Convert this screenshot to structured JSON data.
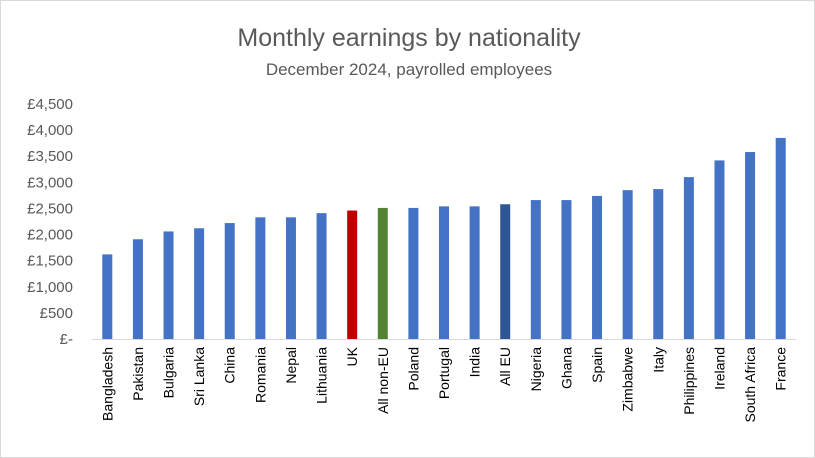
{
  "chart_data": {
    "type": "bar",
    "title": "Monthly earnings by nationality",
    "subtitle": "December 2024, payrolled employees",
    "xlabel": "",
    "ylabel": "",
    "ylim": [
      0,
      4500
    ],
    "ytick_values": [
      0,
      500,
      1000,
      1500,
      2000,
      2500,
      3000,
      3500,
      4000,
      4500
    ],
    "ytick_labels": [
      "£-",
      "£500",
      "£1,000",
      "£1,500",
      "£2,000",
      "£2,500",
      "£3,000",
      "£3,500",
      "£4,000",
      "£4,500"
    ],
    "grid": false,
    "legend": "none",
    "categories": [
      "Bangladesh",
      "Pakistan",
      "Bulgaria",
      "Sri Lanka",
      "China",
      "Romania",
      "Nepal",
      "Lithuania",
      "UK",
      "All non-EU",
      "Poland",
      "Portugal",
      "India",
      "All EU",
      "Nigeria",
      "Ghana",
      "Spain",
      "Zimbabwe",
      "Italy",
      "Philippines",
      "Ireland",
      "South Africa",
      "France"
    ],
    "values": [
      1620,
      1910,
      2060,
      2120,
      2220,
      2330,
      2330,
      2410,
      2460,
      2510,
      2510,
      2540,
      2540,
      2580,
      2660,
      2660,
      2740,
      2850,
      2870,
      3100,
      3420,
      3580,
      3850
    ],
    "bar_colors": [
      "#4472c4",
      "#4472c4",
      "#4472c4",
      "#4472c4",
      "#4472c4",
      "#4472c4",
      "#4472c4",
      "#4472c4",
      "#c00000",
      "#548235",
      "#4472c4",
      "#4472c4",
      "#4472c4",
      "#2f5597",
      "#4472c4",
      "#4472c4",
      "#4472c4",
      "#4472c4",
      "#4472c4",
      "#4472c4",
      "#4472c4",
      "#4472c4",
      "#4472c4"
    ]
  }
}
